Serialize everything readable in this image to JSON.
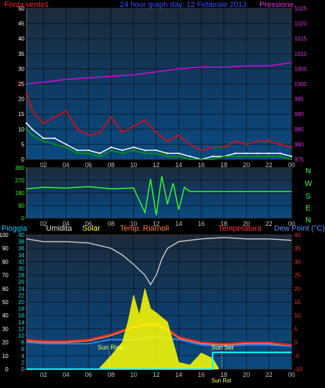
{
  "panel1": {
    "left_label": "Forza vento1",
    "title": "24 hour graph day: 12 Febbraio 2013",
    "right_label": "Pressione",
    "colors": {
      "left_label": "#ff2020",
      "title": "#3050ff",
      "right_label": "#e030e0"
    }
  },
  "panel2": {
    "compass": [
      "N",
      "W",
      "S",
      "E",
      "N"
    ]
  },
  "panel3": {
    "labels": [
      "Pioggia",
      "Umidita",
      "Solar",
      "Temp. Riarnoli",
      "Temperatura",
      "Dew Point (°C)"
    ],
    "label_colors": [
      "#00c8ff",
      "#e0e0e0",
      "#ffff40",
      "#ff8030",
      "#ff3030",
      "#5090ff"
    ],
    "annotations": [
      "Sun Rise",
      "Sun Set",
      "Sun Rst"
    ]
  },
  "chart_data": [
    {
      "type": "line",
      "x_ticks": [
        "02",
        "04",
        "06",
        "08",
        "10",
        "12",
        "14",
        "16",
        "18",
        "20",
        "22",
        "00"
      ],
      "y_left": {
        "ticks": [
          0,
          5,
          10,
          15,
          20,
          25,
          30,
          35,
          40,
          45,
          50
        ],
        "ylim": [
          0,
          50
        ]
      },
      "y_right": {
        "ticks": [
          975,
          980,
          985,
          990,
          995,
          1000,
          1005,
          1010,
          1015,
          1020,
          1025
        ],
        "ylim": [
          975,
          1025
        ]
      },
      "series": [
        {
          "axis": "right",
          "color": "#e000e0",
          "x": [
            0,
            2,
            4,
            6,
            8,
            10,
            12,
            14,
            16,
            18,
            20,
            22,
            24
          ],
          "values": [
            1000,
            1000.5,
            1001.5,
            1002,
            1002.5,
            1003,
            1004,
            1005,
            1005.5,
            1005.5,
            1006,
            1006,
            1007
          ]
        },
        {
          "axis": "left",
          "color": "#ff0000",
          "x": [
            0,
            1,
            2,
            3,
            4,
            5,
            6,
            7,
            8,
            9,
            10,
            11,
            12,
            13,
            14,
            15,
            16,
            17,
            18,
            19,
            20,
            21,
            22,
            23,
            24
          ],
          "values": [
            22,
            16,
            12,
            14,
            16,
            10,
            8,
            9,
            14,
            9,
            11,
            13,
            9,
            6,
            8,
            5,
            3,
            4,
            4,
            6,
            5,
            6,
            6,
            5,
            4
          ]
        },
        {
          "axis": "left",
          "color": "#ffffff",
          "x": [
            0,
            1,
            2,
            3,
            4,
            5,
            6,
            7,
            8,
            9,
            10,
            11,
            12,
            13,
            14,
            15,
            16,
            17,
            18,
            19,
            20,
            21,
            22,
            23,
            24
          ],
          "values": [
            12,
            10,
            7,
            7,
            5,
            3,
            3,
            2,
            4,
            3,
            4,
            3,
            3,
            2,
            2,
            1,
            0,
            1,
            1,
            2,
            2,
            2,
            2,
            2,
            1
          ]
        },
        {
          "axis": "left",
          "color": "#00a000",
          "x": [
            0,
            1,
            2,
            3,
            4,
            5,
            6,
            7,
            8,
            9,
            10,
            11,
            12,
            13,
            14,
            15,
            16,
            17,
            18,
            19,
            20,
            21,
            22,
            23,
            24
          ],
          "values": [
            10,
            8,
            6,
            5,
            4,
            2,
            2,
            1,
            3,
            2,
            3,
            2,
            2,
            1,
            1,
            0,
            0,
            0,
            1,
            1,
            1,
            1,
            1,
            1,
            0
          ]
        }
      ]
    },
    {
      "type": "line",
      "x_ticks": [
        "02",
        "04",
        "06",
        "08",
        "10",
        "12",
        "14",
        "16",
        "18",
        "20",
        "22",
        "00"
      ],
      "y_left": {
        "ticks": [
          0,
          90,
          180,
          270,
          360
        ],
        "ylim": [
          0,
          360
        ]
      },
      "series": [
        {
          "color": "#30ff30",
          "x": [
            0,
            2,
            4,
            6,
            8,
            10,
            11,
            11.5,
            12,
            12.5,
            13,
            13.5,
            14,
            14.5,
            15,
            24
          ],
          "values": [
            210,
            220,
            215,
            225,
            210,
            215,
            40,
            280,
            20,
            300,
            100,
            250,
            60,
            220,
            190,
            190
          ]
        }
      ]
    },
    {
      "type": "line",
      "x_ticks": [
        "02",
        "04",
        "06",
        "08",
        "10",
        "12",
        "14",
        "16",
        "18",
        "20",
        "22",
        "00"
      ],
      "y_left": {
        "ticks": [
          0,
          10,
          20,
          30,
          40,
          50,
          60,
          70,
          80,
          90,
          100
        ],
        "ylim": [
          0,
          100
        ]
      },
      "y_left2": {
        "ticks": [
          0,
          2,
          4,
          6,
          8,
          10,
          12,
          14,
          16,
          18,
          20,
          22,
          24,
          26,
          28,
          30,
          32,
          34,
          36,
          38,
          40
        ]
      },
      "y_right": {
        "ticks": [
          -10,
          -5,
          0,
          5,
          10,
          15,
          20,
          25,
          30,
          35,
          40
        ],
        "ylim": [
          -10,
          40
        ]
      },
      "series": [
        {
          "name": "Umidita",
          "axis": "left",
          "color": "#c8c8c8",
          "x": [
            0,
            2,
            4,
            6,
            8,
            9,
            10,
            11,
            11.5,
            12,
            12.5,
            13,
            14,
            16,
            18,
            20,
            22,
            24
          ],
          "values": [
            97,
            95,
            95,
            94,
            90,
            85,
            78,
            70,
            63,
            70,
            82,
            90,
            95,
            97,
            98,
            97,
            97,
            96
          ]
        },
        {
          "name": "Temperatura",
          "axis": "right",
          "color": "#ff2020",
          "x": [
            0,
            2,
            4,
            6,
            8,
            10,
            11,
            12,
            13,
            14,
            16,
            18,
            20,
            22,
            24
          ],
          "values": [
            1,
            0.5,
            0.5,
            1,
            3,
            6,
            7,
            7,
            5,
            2,
            0,
            -0.5,
            0,
            0,
            -1
          ]
        },
        {
          "name": "Temp. Riarnoli",
          "axis": "right",
          "color": "#ff8030",
          "x": [
            0,
            2,
            4,
            6,
            8,
            10,
            11,
            12,
            13,
            14,
            16,
            18,
            20,
            22,
            24
          ],
          "values": [
            0.5,
            0,
            0,
            0.5,
            2.5,
            5.5,
            6.5,
            6.5,
            4.5,
            1.5,
            -0.5,
            -1,
            -0.5,
            -0.5,
            -1.5
          ]
        },
        {
          "name": "Dew Point (°C)",
          "axis": "right",
          "color": "#3080ff",
          "x": [
            0,
            2,
            4,
            6,
            8,
            10,
            12,
            14,
            16,
            18,
            20,
            22,
            24
          ],
          "values": [
            0,
            -0.5,
            -0.5,
            -0.5,
            1,
            1,
            2,
            1,
            -1,
            -1.5,
            -1,
            -1,
            -1.5
          ]
        },
        {
          "name": "Solar",
          "axis": "left",
          "color": "#ffff00",
          "x": [
            7,
            8,
            9,
            9.5,
            10,
            10.5,
            11,
            11.5,
            12,
            13,
            14,
            15,
            16,
            17,
            17.5
          ],
          "values": [
            1,
            10,
            20,
            35,
            55,
            40,
            60,
            45,
            42,
            35,
            5,
            3,
            12,
            8,
            1
          ]
        },
        {
          "name": "Pioggia",
          "axis": "left2",
          "color": "#00ffff",
          "x": [
            0,
            16.5,
            17,
            24
          ],
          "values": [
            0,
            0,
            5,
            5
          ]
        }
      ]
    }
  ]
}
